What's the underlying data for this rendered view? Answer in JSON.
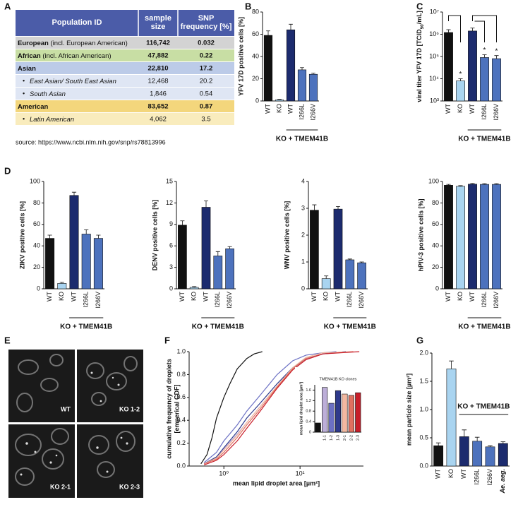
{
  "panel_labels": [
    "A",
    "B",
    "C",
    "D",
    "E",
    "F",
    "G"
  ],
  "table": {
    "header": [
      [
        "Population ID"
      ],
      [
        "sample",
        "size"
      ],
      [
        "SNP",
        "frequency [%]"
      ]
    ],
    "rows": [
      {
        "name": "European",
        "note": "(incl. European American)",
        "size": "116,742",
        "snp": "0.032",
        "color": "#d3d3d3"
      },
      {
        "name": "African",
        "note": "(incl. African American)",
        "size": "47,882",
        "snp": "0.22",
        "color": "#c8dea4"
      },
      {
        "name": "Asian",
        "size": "22,810",
        "snp": "17.2",
        "color": "#bccbe8"
      },
      {
        "name": "East Asian/ South East Asian",
        "size": "12,468",
        "snp": "20.2",
        "color": "#dfe6f4",
        "indent": true
      },
      {
        "name": "South Asian",
        "size": "1,846",
        "snp": "0.54",
        "color": "#dfe6f4",
        "indent": true
      },
      {
        "name": "American",
        "size": "83,652",
        "snp": "0.87",
        "color": "#f3d67c",
        "indent": false
      },
      {
        "name": "Latin American",
        "size": "4,062",
        "snp": "3.5",
        "color": "#f9ecbd",
        "indent": true
      }
    ],
    "source": "source: https://www.ncbi.nlm.nih.gov/snp/rs78813996"
  },
  "images": {
    "labels": [
      "WT",
      "KO 1-2",
      "KO 2-1",
      "KO 2-3"
    ]
  },
  "chart_data": [
    {
      "type": "bar",
      "ylabel": "YFV 17D positive cells [%]",
      "categories": [
        "WT",
        "KO",
        "WT",
        "I266L",
        "I266V"
      ],
      "values": [
        59,
        1,
        64,
        28,
        24
      ],
      "errors": [
        4,
        0.5,
        5,
        2,
        1
      ],
      "colors": [
        "#111111",
        "#a9d4f0",
        "#1c2b6e",
        "#4d72bd",
        "#4d72bd"
      ],
      "ylim": [
        0,
        80
      ],
      "yticks": [
        0,
        20,
        40,
        60,
        80
      ],
      "group_label": "KO + TMEM41B"
    },
    {
      "type": "bar",
      "ylabel": [
        "viral titer YFV 17D [TCID",
        "50",
        "/mL]"
      ],
      "categories": [
        "WT",
        "KO",
        "WT",
        "I266L",
        "I266V"
      ],
      "values": [
        1200000,
        8000,
        1400000,
        90000,
        80000
      ],
      "errors": [
        400000,
        2000,
        500000,
        30000,
        30000
      ],
      "colors": [
        "#111111",
        "#a9d4f0",
        "#1c2b6e",
        "#4d72bd",
        "#4d72bd"
      ],
      "log": true,
      "ylim": [
        1000,
        10000000
      ],
      "yticks": [
        {
          "value": 1000,
          "label": "10³"
        },
        {
          "value": 10000,
          "label": "10⁴"
        },
        {
          "value": 100000,
          "label": "10⁵"
        },
        {
          "value": 1000000,
          "label": "10⁶"
        },
        {
          "value": 10000000,
          "label": "10⁷"
        }
      ],
      "significance": [
        null,
        "*",
        null,
        "*",
        "*"
      ],
      "group_label": "KO + TMEM41B"
    },
    {
      "type": "bar",
      "ylabel": "ZIKV positive cells [%]",
      "categories": [
        "WT",
        "KO",
        "WT",
        "I266L",
        "I266V"
      ],
      "values": [
        47,
        5,
        87,
        51,
        47
      ],
      "errors": [
        3,
        1,
        3,
        4,
        3
      ],
      "colors": [
        "#111111",
        "#a9d4f0",
        "#1c2b6e",
        "#4d72bd",
        "#4d72bd"
      ],
      "ylim": [
        0,
        100
      ],
      "yticks": [
        0,
        20,
        40,
        60,
        80,
        100
      ],
      "group_label": "KO + TMEM41B"
    },
    {
      "type": "bar",
      "ylabel": "DENV positive cells [%]",
      "categories": [
        "WT",
        "KO",
        "WT",
        "I266L",
        "I266V"
      ],
      "values": [
        8.9,
        0.2,
        11.4,
        4.6,
        5.6
      ],
      "errors": [
        0.6,
        0.1,
        0.9,
        0.6,
        0.3
      ],
      "colors": [
        "#111111",
        "#a9d4f0",
        "#1c2b6e",
        "#4d72bd",
        "#4d72bd"
      ],
      "ylim": [
        0,
        15
      ],
      "yticks": [
        0,
        3,
        6,
        9,
        12,
        15
      ],
      "group_label": "KO + TMEM41B"
    },
    {
      "type": "bar",
      "ylabel": "WNV positive cells [%]",
      "categories": [
        "WT",
        "KO",
        "WT",
        "I266L",
        "I266V"
      ],
      "values": [
        2.93,
        0.38,
        2.97,
        1.08,
        0.97
      ],
      "errors": [
        0.2,
        0.1,
        0.1,
        0.03,
        0.03
      ],
      "colors": [
        "#111111",
        "#a9d4f0",
        "#1c2b6e",
        "#4d72bd",
        "#4d72bd"
      ],
      "ylim": [
        0,
        4
      ],
      "yticks": [
        0,
        1,
        2,
        3,
        4
      ],
      "group_label": "KO + TMEM41B"
    },
    {
      "type": "bar",
      "ylabel": "hPIV-3 positive cells [%]",
      "categories": [
        "WT",
        "KO",
        "WT",
        "I266L",
        "I266V"
      ],
      "values": [
        96.5,
        95.5,
        97.5,
        97.3,
        97.3
      ],
      "errors": [
        0.8,
        0.6,
        0.6,
        0.6,
        0.6
      ],
      "colors": [
        "#111111",
        "#a9d4f0",
        "#1c2b6e",
        "#4d72bd",
        "#4d72bd"
      ],
      "ylim": [
        0,
        100
      ],
      "yticks": [
        0,
        20,
        40,
        60,
        80,
        100
      ],
      "group_label": "KO + TMEM41B"
    },
    {
      "type": "line",
      "ylabel": [
        "cumulative frequency of droplets",
        "[emperical CDF]"
      ],
      "xlabel": "mean lipid droplet area [µm²]",
      "log_x": true,
      "xlim": [
        0.35,
        68
      ],
      "xticks": [
        {
          "value": 1,
          "label": "10⁰"
        },
        {
          "value": 10,
          "label": "10¹"
        }
      ],
      "ylim": [
        0,
        1
      ],
      "yticks": [
        {
          "value": 0,
          "label": "0.0"
        },
        0.2,
        0.4,
        0.6,
        0.8,
        {
          "value": 1,
          "label": "1.0"
        }
      ],
      "series": [
        {
          "color": "#111111",
          "x": [
            0.5,
            0.6,
            0.7,
            0.8,
            1.0,
            1.2,
            1.5,
            2,
            2.5,
            3.2
          ],
          "values": [
            0.02,
            0.1,
            0.25,
            0.42,
            0.6,
            0.72,
            0.85,
            0.94,
            0.98,
            1.0
          ]
        },
        {
          "color": "#bcaed8",
          "x": [
            0.55,
            0.8,
            1,
            1.5,
            2,
            3,
            5,
            8,
            12,
            20,
            40
          ],
          "values": [
            0.02,
            0.08,
            0.15,
            0.28,
            0.38,
            0.52,
            0.7,
            0.85,
            0.93,
            0.98,
            1.0
          ]
        },
        {
          "color": "#6b70c4",
          "x": [
            0.55,
            0.8,
            1,
            1.5,
            2,
            3,
            5,
            8,
            12,
            20,
            30
          ],
          "values": [
            0.03,
            0.12,
            0.22,
            0.36,
            0.48,
            0.62,
            0.8,
            0.92,
            0.97,
            0.99,
            1.0
          ]
        },
        {
          "color": "#2e3a8c",
          "x": [
            0.55,
            0.8,
            1,
            1.5,
            2,
            3,
            5,
            8,
            12,
            20,
            40
          ],
          "values": [
            0.02,
            0.08,
            0.16,
            0.3,
            0.42,
            0.55,
            0.72,
            0.86,
            0.94,
            0.98,
            1.0
          ]
        },
        {
          "color": "#f2b8a0",
          "x": [
            0.55,
            0.8,
            1,
            1.5,
            2,
            3,
            5,
            8,
            12,
            20,
            50
          ],
          "values": [
            0.02,
            0.07,
            0.14,
            0.27,
            0.38,
            0.52,
            0.7,
            0.86,
            0.95,
            0.99,
            1.0
          ]
        },
        {
          "color": "#e07060",
          "x": [
            0.55,
            0.8,
            1,
            1.5,
            2,
            3,
            5,
            8,
            12,
            20,
            50
          ],
          "values": [
            0.02,
            0.06,
            0.12,
            0.25,
            0.36,
            0.5,
            0.69,
            0.85,
            0.94,
            0.98,
            1.0
          ]
        },
        {
          "color": "#c81e2a",
          "x": [
            0.55,
            0.8,
            1,
            1.5,
            2,
            3,
            5,
            8,
            12,
            20,
            60
          ],
          "values": [
            0.01,
            0.05,
            0.1,
            0.22,
            0.33,
            0.48,
            0.68,
            0.84,
            0.93,
            0.98,
            1.0
          ]
        }
      ]
    },
    {
      "type": "bar",
      "title": "TMEM41B KO clones",
      "ylabel": "mean lipid droplet area [µm²]",
      "categories": [
        null,
        "1-1",
        "1-2",
        "1-3",
        "2-1",
        "2-2",
        "2-3"
      ],
      "values": [
        0.35,
        1.7,
        1.1,
        1.58,
        1.45,
        1.4,
        1.5
      ],
      "colors": [
        "#111111",
        "#bcaed8",
        "#6b70c4",
        "#2e3a8c",
        "#f2b8a0",
        "#e07060",
        "#c81e2a"
      ],
      "ylim": [
        0,
        1.8
      ],
      "yticks": [
        0,
        0.4,
        0.8,
        1.2,
        1.6
      ]
    },
    {
      "type": "bar",
      "ylabel": "mean particle size [µm²]",
      "categories": [
        "WT",
        "KO",
        "WT",
        "I266L",
        "I266V",
        "Ae. aeg."
      ],
      "values": [
        0.36,
        1.72,
        0.52,
        0.44,
        0.34,
        0.4
      ],
      "errors": [
        0.05,
        0.14,
        0.12,
        0.07,
        0.02,
        0.03
      ],
      "colors": [
        "#111111",
        "#a9d4f0",
        "#1c2b6e",
        "#4d72bd",
        "#4d72bd",
        "#1c2b6e"
      ],
      "ylim": [
        0,
        2
      ],
      "yticks": [
        {
          "value": 0,
          "label": "0.0"
        },
        0.5,
        {
          "value": 1,
          "label": "1.0"
        },
        1.5,
        {
          "value": 2,
          "label": "2.0"
        }
      ],
      "group_label": "KO + TMEM41B"
    }
  ]
}
